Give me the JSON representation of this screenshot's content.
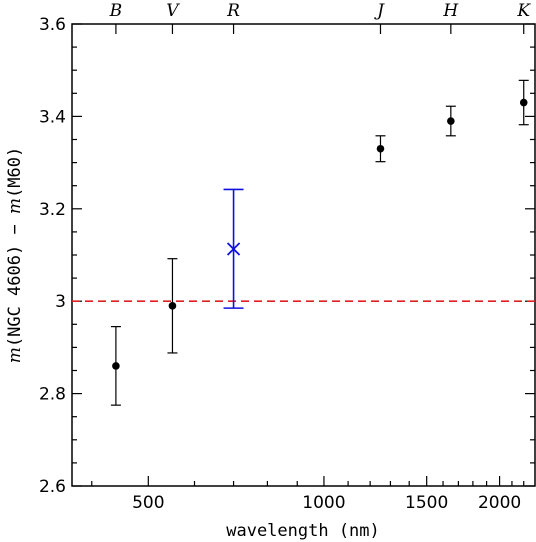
{
  "chart_data": {
    "type": "scatter",
    "title": "",
    "xlabel": "wavelength (nm)",
    "ylabel": {
      "m1": "m",
      "t1": "(NGC 4606) − ",
      "m2": "m",
      "t2": "(M60)"
    },
    "xscale": "log",
    "xlim": [
      370,
      2300
    ],
    "ylim": [
      2.6,
      3.6
    ],
    "x_ticks": [
      500,
      1000,
      1500,
      2000
    ],
    "x_tick_labels": [
      "500",
      "1000",
      "1500",
      "2000"
    ],
    "y_ticks": [
      2.6,
      2.8,
      3.0,
      3.2,
      3.4,
      3.6
    ],
    "y_tick_labels": [
      "2.6",
      "2.8",
      "3",
      "3.2",
      "3.4",
      "3.6"
    ],
    "bands": [
      {
        "label": "B",
        "x": 440
      },
      {
        "label": "V",
        "x": 550
      },
      {
        "label": "R",
        "x": 700
      },
      {
        "label": "J",
        "x": 1250
      },
      {
        "label": "H",
        "x": 1650
      },
      {
        "label": "K",
        "x": 2200
      }
    ],
    "series": [
      {
        "marker": "circle",
        "color": "#000000",
        "points": [
          {
            "x": 440,
            "y": 2.86,
            "yerr_low": 2.775,
            "yerr_high": 2.945
          },
          {
            "x": 550,
            "y": 2.99,
            "yerr_low": 2.888,
            "yerr_high": 3.092
          },
          {
            "x": 1250,
            "y": 3.33,
            "yerr_low": 3.302,
            "yerr_high": 3.358
          },
          {
            "x": 1650,
            "y": 3.39,
            "yerr_low": 3.358,
            "yerr_high": 3.422
          },
          {
            "x": 2200,
            "y": 3.43,
            "yerr_low": 3.382,
            "yerr_high": 3.478
          }
        ]
      },
      {
        "marker": "x",
        "color": "#1010e0",
        "points": [
          {
            "x": 700,
            "y": 3.113,
            "yerr_low": 2.985,
            "yerr_high": 3.242
          }
        ]
      }
    ],
    "reference_line": {
      "y": 3.0,
      "color": "#e02020",
      "style": "dashed"
    }
  }
}
